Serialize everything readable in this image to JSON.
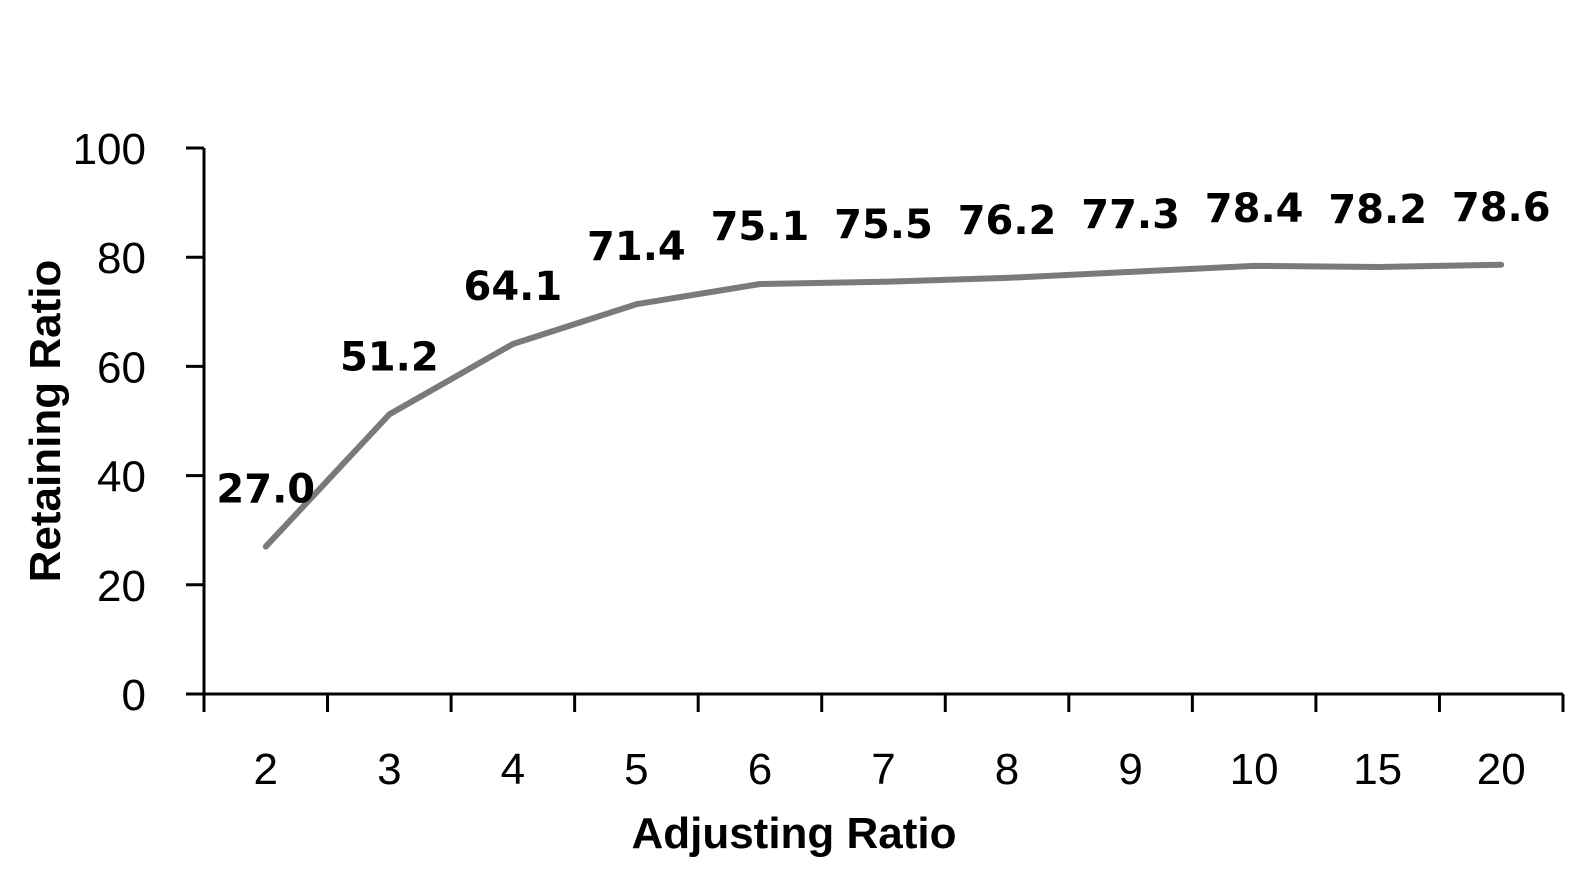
{
  "chart_data": {
    "type": "line",
    "categories": [
      "2",
      "3",
      "4",
      "5",
      "6",
      "7",
      "8",
      "9",
      "10",
      "15",
      "20"
    ],
    "series": [
      {
        "values": [
          27.0,
          51.2,
          64.1,
          71.4,
          75.1,
          75.5,
          76.2,
          77.3,
          78.4,
          78.2,
          78.6
        ],
        "labels": [
          "27.0",
          "51.2",
          "64.1",
          "71.4",
          "75.1",
          "75.5",
          "76.2",
          "77.3",
          "78.4",
          "78.2",
          "78.6"
        ],
        "color": "#7a7a7a"
      }
    ],
    "title": "",
    "xlabel": "Adjusting Ratio",
    "ylabel": "Retaining Ratio",
    "ylim": [
      0,
      100
    ],
    "yticks": [
      "0",
      "20",
      "40",
      "60",
      "80",
      "100"
    ],
    "grid": false,
    "legend": "none"
  }
}
